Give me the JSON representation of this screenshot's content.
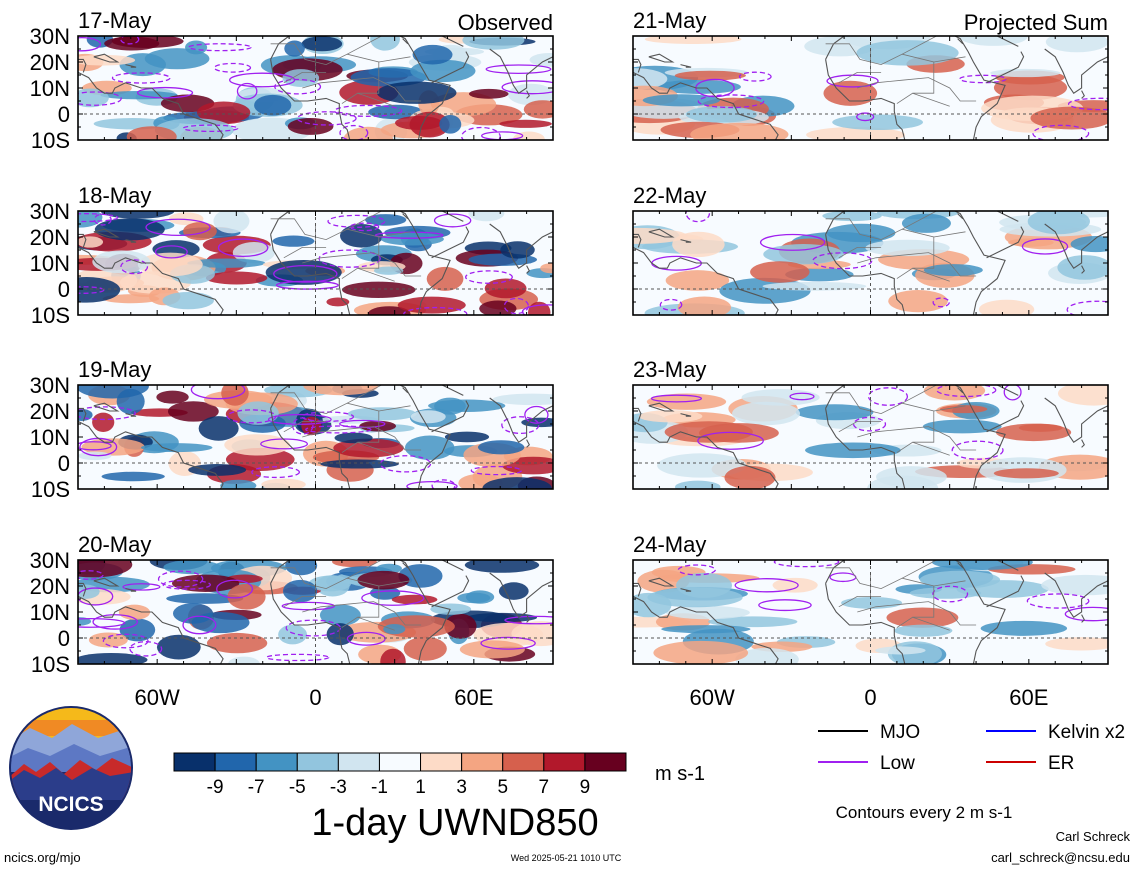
{
  "chart_data": {
    "type": "heatmap",
    "title": "1-day UWND850",
    "units": "m s-1",
    "column_labels": {
      "left": "Observed",
      "right": "Projected Sum"
    },
    "lat_ticks": [
      "30N",
      "20N",
      "10N",
      "0",
      "10S"
    ],
    "lat_values": [
      30,
      20,
      10,
      0,
      -10
    ],
    "lon_ticks": [
      "60W",
      "0",
      "60E"
    ],
    "lon_values": [
      -60,
      0,
      60
    ],
    "lon_range": [
      -90,
      90
    ],
    "lat_range": [
      -10,
      30
    ],
    "panels": [
      {
        "date": "17-May",
        "kind": "observed",
        "column_label": "Observed"
      },
      {
        "date": "18-May",
        "kind": "observed"
      },
      {
        "date": "19-May",
        "kind": "observed"
      },
      {
        "date": "20-May",
        "kind": "observed"
      },
      {
        "date": "21-May",
        "kind": "projected",
        "column_label": "Projected Sum"
      },
      {
        "date": "22-May",
        "kind": "projected"
      },
      {
        "date": "23-May",
        "kind": "projected"
      },
      {
        "date": "24-May",
        "kind": "projected"
      }
    ],
    "colorbar": {
      "labels": [
        "-9",
        "-7",
        "-5",
        "-3",
        "-1",
        "1",
        "3",
        "5",
        "7",
        "9"
      ],
      "colors": [
        "#08306b",
        "#2166ac",
        "#4393c3",
        "#92c5de",
        "#d1e5f0",
        "#f7fbff",
        "#fddbc7",
        "#f4a582",
        "#d6604d",
        "#b2182b",
        "#67001f"
      ]
    },
    "legend": [
      {
        "label": "MJO",
        "color": "#000000"
      },
      {
        "label": "Kelvin x2",
        "color": "#0000ff"
      },
      {
        "label": "Low",
        "color": "#a020f0"
      },
      {
        "label": "ER",
        "color": "#cc0000"
      }
    ],
    "contour_note": "Contours every 2 m s-1"
  },
  "footer": {
    "logo_text": "NCICS",
    "url": "ncics.org/mjo",
    "timestamp": "Wed 2025-05-21 1010 UTC",
    "author": "Carl Schreck",
    "email": "carl_schreck@ncsu.edu"
  }
}
